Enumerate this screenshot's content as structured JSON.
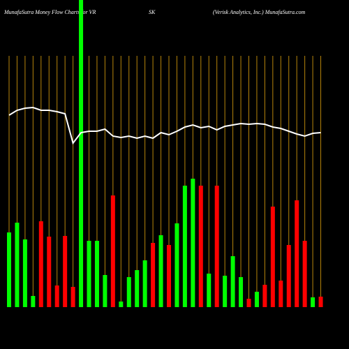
{
  "chart_data": {
    "type": "bar",
    "title": "MunafaSutra  Money Flow  Charts for VR",
    "symbol": "SK",
    "subtitle": "(Verisk Analytics,  Inc.) MunafaSutra.com",
    "values": [
      107,
      121,
      97,
      16,
      123,
      101,
      31,
      102,
      29,
      440,
      95,
      95,
      46,
      160,
      8,
      43,
      53,
      67,
      92,
      103,
      89,
      120,
      174,
      184,
      174,
      48,
      174,
      45,
      73,
      43,
      12,
      22,
      32,
      144,
      38,
      89,
      153,
      95,
      14,
      15
    ],
    "colors": [
      "#00ff00",
      "#00ff00",
      "#00ff00",
      "#00ff00",
      "#ff0000",
      "#ff0000",
      "#ff0000",
      "#ff0000",
      "#ff0000",
      "#00ff00",
      "#00ff00",
      "#00ff00",
      "#00ff00",
      "#ff0000",
      "#00ff00",
      "#00ff00",
      "#00ff00",
      "#00ff00",
      "#ff0000",
      "#00ff00",
      "#ff0000",
      "#00ff00",
      "#00ff00",
      "#00ff00",
      "#ff0000",
      "#00ff00",
      "#ff0000",
      "#00ff00",
      "#00ff00",
      "#00ff00",
      "#ff0000",
      "#00ff00",
      "#ff0000",
      "#ff0000",
      "#ff0000",
      "#ff0000",
      "#ff0000",
      "#ff0000",
      "#00ff00",
      "#ff0000"
    ],
    "line_values": [
      275,
      282,
      285,
      286,
      282,
      282,
      280,
      277,
      235,
      250,
      252,
      252,
      255,
      245,
      243,
      245,
      242,
      245,
      242,
      250,
      247,
      252,
      258,
      261,
      257,
      259,
      254,
      259,
      261,
      263,
      262,
      263,
      262,
      258,
      256,
      252,
      248,
      245,
      249,
      250
    ],
    "line_color": "#ffffff",
    "gridline_color": "#b8860b",
    "ylim": [
      0,
      440
    ]
  }
}
